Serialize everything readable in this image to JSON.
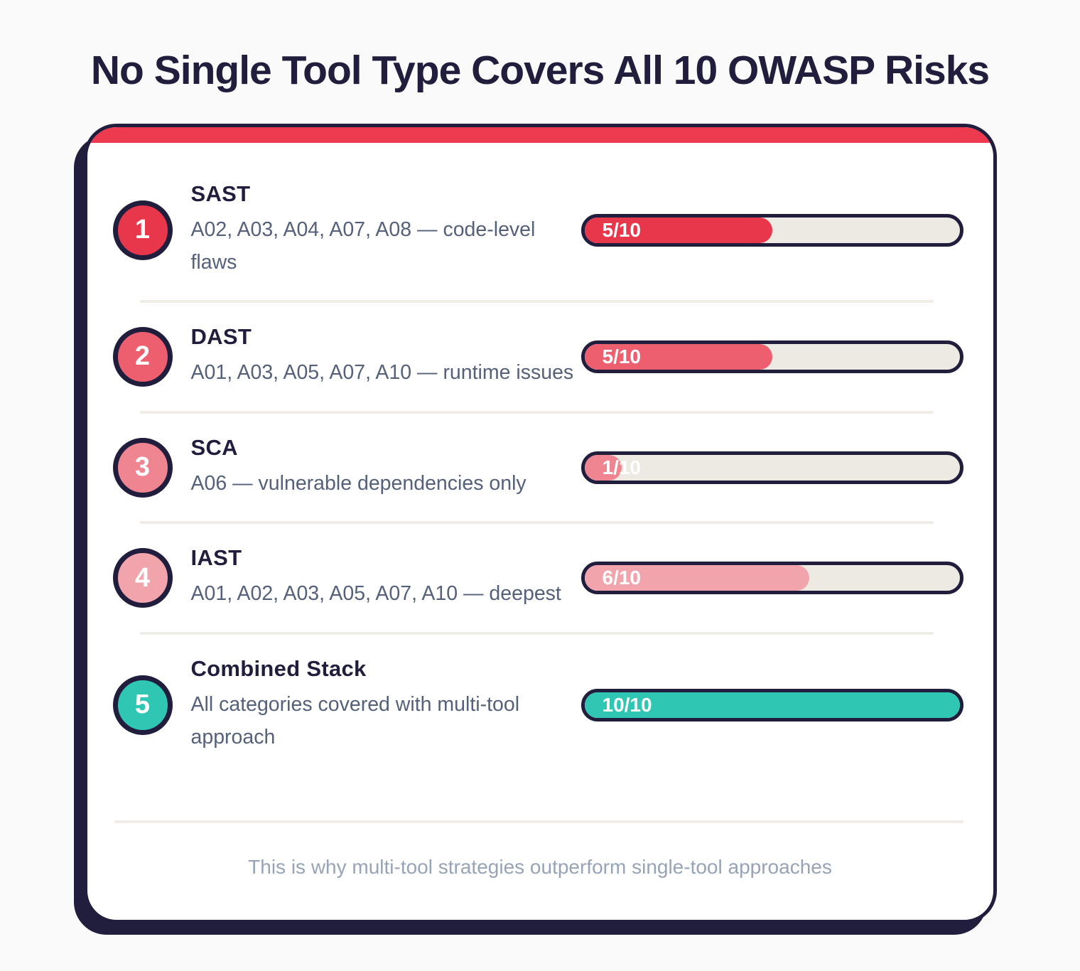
{
  "page": {
    "title": "No Single Tool Type Covers All 10 OWASP Risks",
    "footer_note": "This is why multi-tool strategies outperform single-tool approaches"
  },
  "colors": {
    "background": "#fafafa",
    "card_background": "#ffffff",
    "navy_outline": "#211d3d",
    "accent_red": "#ee3a4e",
    "bar_track": "#edeae4",
    "divider": "#f0ece7",
    "description_text": "#55617a",
    "footer_text": "#97a3b6"
  },
  "chart_data": {
    "type": "bar",
    "title": "No Single Tool Type Covers All 10 OWASP Risks",
    "categories": [
      "SAST",
      "DAST",
      "SCA",
      "IAST",
      "Combined Stack"
    ],
    "values": [
      5,
      5,
      1,
      6,
      10
    ],
    "max_value": 10,
    "value_labels": [
      "5/10",
      "5/10",
      "1/10",
      "6/10",
      "10/10"
    ],
    "bar_colors": [
      "#e8374b",
      "#ed5f6e",
      "#ee8591",
      "#f2a4ad",
      "#2fc6b4"
    ],
    "annotations": [
      "A02, A03, A04, A07, A08 — code-level flaws",
      "A01, A03, A05, A07, A10 — runtime issues",
      "A06 — vulnerable dependencies only",
      "A01, A02, A03, A05, A07, A10 — deepest",
      "All categories covered with multi-tool approach"
    ],
    "footer": "This is why multi-tool strategies outperform single-tool approaches"
  },
  "rows": [
    {
      "number": "1",
      "title": "SAST",
      "description": "A02, A03, A04, A07, A08 — code-level flaws",
      "score_label": "5/10",
      "value": 5,
      "max": 10,
      "color": "#e8374b"
    },
    {
      "number": "2",
      "title": "DAST",
      "description": "A01, A03, A05, A07, A10 — runtime issues",
      "score_label": "5/10",
      "value": 5,
      "max": 10,
      "color": "#ed5f6e"
    },
    {
      "number": "3",
      "title": "SCA",
      "description": "A06 — vulnerable dependencies only",
      "score_label": "1/10",
      "value": 1,
      "max": 10,
      "color": "#ee8591"
    },
    {
      "number": "4",
      "title": "IAST",
      "description": "A01, A02, A03, A05, A07, A10 — deepest",
      "score_label": "6/10",
      "value": 6,
      "max": 10,
      "color": "#f2a4ad"
    },
    {
      "number": "5",
      "title": "Combined Stack",
      "description": "All categories covered with multi-tool approach",
      "score_label": "10/10",
      "value": 10,
      "max": 10,
      "color": "#2fc6b4"
    }
  ]
}
